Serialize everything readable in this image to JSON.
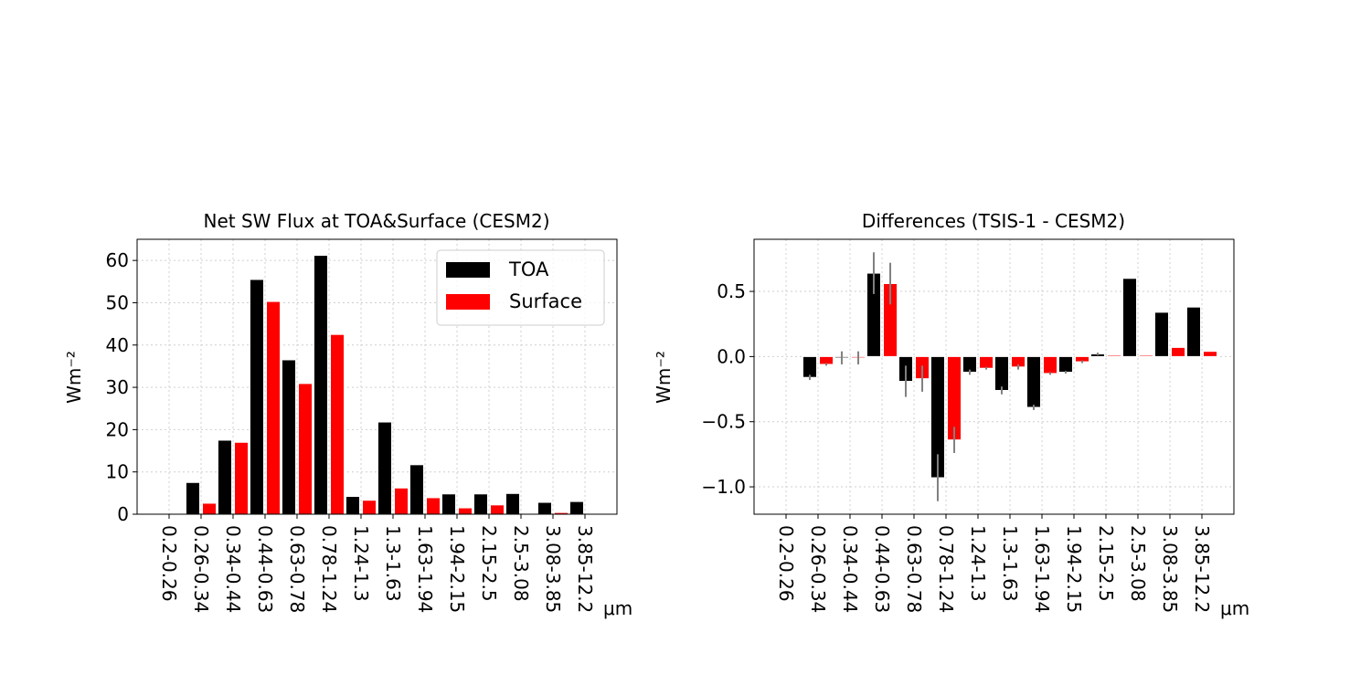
{
  "chart_data": [
    {
      "type": "bar",
      "title": "Net SW Flux at TOA&Surface (CESM2)",
      "xlabel": "μm",
      "ylabel": "Wm⁻²",
      "categories": [
        "0.2-0.26",
        "0.26-0.34",
        "0.34-0.44",
        "0.44-0.63",
        "0.63-0.78",
        "0.78-1.24",
        "1.24-1.3",
        "1.3-1.63",
        "1.63-1.94",
        "1.94-2.15",
        "2.15-2.5",
        "2.5-3.08",
        "3.08-3.85",
        "3.85-12.2"
      ],
      "series": [
        {
          "name": "TOA",
          "color": "#000000",
          "values": [
            0.0,
            7.5,
            17.5,
            55.5,
            36.5,
            61.2,
            4.2,
            21.8,
            11.7,
            4.8,
            4.8,
            4.9,
            2.8,
            3.0
          ]
        },
        {
          "name": "Surface",
          "color": "#ff0000",
          "values": [
            0.0,
            2.6,
            17.0,
            50.3,
            30.9,
            42.5,
            3.3,
            6.2,
            3.9,
            1.5,
            2.2,
            0.1,
            0.4,
            0.1
          ]
        }
      ],
      "ylim": [
        0,
        65
      ],
      "yticks": [
        0,
        10,
        20,
        30,
        40,
        50,
        60
      ],
      "grid": true,
      "legend": "top-right"
    },
    {
      "type": "bar",
      "title": "Differences (TSIS-1 - CESM2)",
      "xlabel": "μm",
      "ylabel": "Wm⁻²",
      "categories": [
        "0.2-0.26",
        "0.26-0.34",
        "0.34-0.44",
        "0.44-0.63",
        "0.63-0.78",
        "0.78-1.24",
        "1.24-1.3",
        "1.3-1.63",
        "1.63-1.94",
        "1.94-2.15",
        "2.15-2.5",
        "2.5-3.08",
        "3.08-3.85",
        "3.85-12.2"
      ],
      "series": [
        {
          "name": "TOA",
          "color": "#000000",
          "values": [
            0.0,
            -0.16,
            -0.01,
            0.64,
            -0.19,
            -0.93,
            -0.12,
            -0.26,
            -0.39,
            -0.12,
            0.02,
            0.6,
            0.34,
            0.38
          ],
          "error": [
            0.0,
            0.02,
            0.05,
            0.16,
            0.12,
            0.18,
            0.02,
            0.03,
            0.02,
            0.01,
            0.01,
            0.0,
            0.0,
            0.0
          ]
        },
        {
          "name": "Surface",
          "color": "#ff0000",
          "values": [
            0.0,
            -0.06,
            -0.01,
            0.56,
            -0.17,
            -0.64,
            -0.09,
            -0.08,
            -0.13,
            -0.04,
            0.01,
            0.01,
            0.07,
            0.04
          ],
          "error": [
            0.0,
            0.01,
            0.05,
            0.16,
            0.1,
            0.1,
            0.01,
            0.02,
            0.01,
            0.01,
            0.0,
            0.0,
            0.0,
            0.0
          ]
        }
      ],
      "ylim": [
        -1.21,
        0.9
      ],
      "yticks": [
        -1.0,
        -0.5,
        0.0,
        0.5
      ],
      "yticklabels": [
        "−1.0",
        "−0.5",
        "0.0",
        "0.5"
      ],
      "error_color": "#808080",
      "grid": true
    }
  ]
}
